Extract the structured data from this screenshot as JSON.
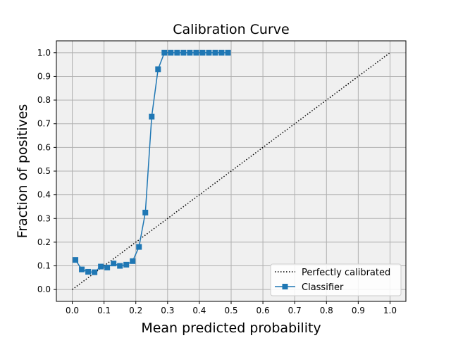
{
  "chart_data": {
    "type": "line",
    "title": "Calibration Curve",
    "xlabel": "Mean predicted probability",
    "ylabel": "Fraction of positives",
    "xlim": [
      -0.05,
      1.05
    ],
    "ylim": [
      -0.05,
      1.05
    ],
    "xticks": [
      "0.0",
      "0.1",
      "0.2",
      "0.3",
      "0.4",
      "0.5",
      "0.6",
      "0.7",
      "0.8",
      "0.9",
      "1.0"
    ],
    "yticks": [
      "0.0",
      "0.1",
      "0.2",
      "0.3",
      "0.4",
      "0.5",
      "0.6",
      "0.7",
      "0.8",
      "0.9",
      "1.0"
    ],
    "grid": true,
    "legend_position": "lower-right",
    "series": [
      {
        "name": "Perfectly calibrated",
        "style": "dotted",
        "color": "#000000",
        "x": [
          0.0,
          1.0
        ],
        "y": [
          0.0,
          1.0
        ]
      },
      {
        "name": "Classifier",
        "style": "solid-square-markers",
        "color": "#1f77b4",
        "x": [
          0.01,
          0.03,
          0.05,
          0.07,
          0.09,
          0.11,
          0.13,
          0.15,
          0.17,
          0.19,
          0.21,
          0.23,
          0.25,
          0.27,
          0.29,
          0.31,
          0.33,
          0.35,
          0.37,
          0.39,
          0.41,
          0.43,
          0.45,
          0.47,
          0.49
        ],
        "y": [
          0.125,
          0.085,
          0.075,
          0.073,
          0.097,
          0.093,
          0.11,
          0.1,
          0.105,
          0.12,
          0.18,
          0.325,
          0.73,
          0.93,
          1.0,
          1.0,
          1.0,
          1.0,
          1.0,
          1.0,
          1.0,
          1.0,
          1.0,
          1.0,
          1.0
        ]
      }
    ]
  },
  "colors": {
    "plot_background": "#f0f0f0",
    "grid": "#b0b0b0",
    "legend_border": "#cccccc"
  }
}
